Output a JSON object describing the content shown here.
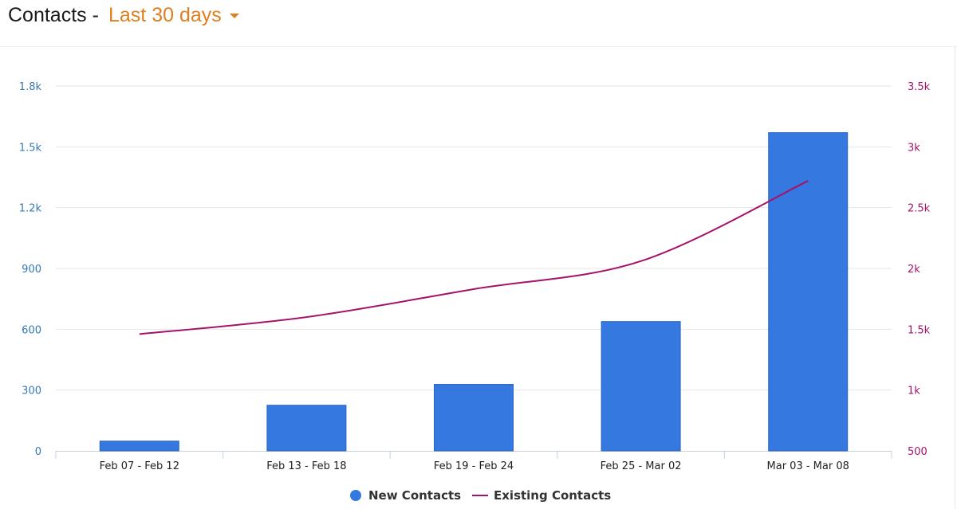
{
  "header": {
    "title": "Contacts -",
    "range_label": "Last 30 days"
  },
  "colors": {
    "bar": "#3478e0",
    "line": "#a5126a",
    "left_axis": "#3478b5",
    "right_axis": "#a5126a",
    "range": "#e07f1f"
  },
  "chart_data": {
    "type": "bar",
    "categories": [
      "Feb 07 - Feb 12",
      "Feb 13 - Feb 18",
      "Feb 19 - Feb 24",
      "Feb 25 - Mar 02",
      "Mar 03 - Mar 08"
    ],
    "series": [
      {
        "name": "New Contacts",
        "type": "bar",
        "axis": "left",
        "values": [
          48,
          225,
          328,
          638,
          1570
        ]
      },
      {
        "name": "Existing Contacts",
        "type": "line",
        "axis": "right",
        "values": [
          1460,
          1600,
          1830,
          2060,
          2720
        ]
      }
    ],
    "left_axis": {
      "min": 0,
      "max": 1800,
      "ticks": [
        0,
        300,
        600,
        900,
        1200,
        1500,
        1800
      ],
      "tick_labels": [
        "0",
        "300",
        "600",
        "900",
        "1.2k",
        "1.5k",
        "1.8k"
      ]
    },
    "right_axis": {
      "min": 500,
      "max": 3500,
      "ticks": [
        500,
        1000,
        1500,
        2000,
        2500,
        3000,
        3500
      ],
      "tick_labels": [
        "500",
        "1k",
        "1.5k",
        "2k",
        "2.5k",
        "3k",
        "3.5k"
      ]
    },
    "grid": true,
    "legend_position": "bottom-center"
  }
}
